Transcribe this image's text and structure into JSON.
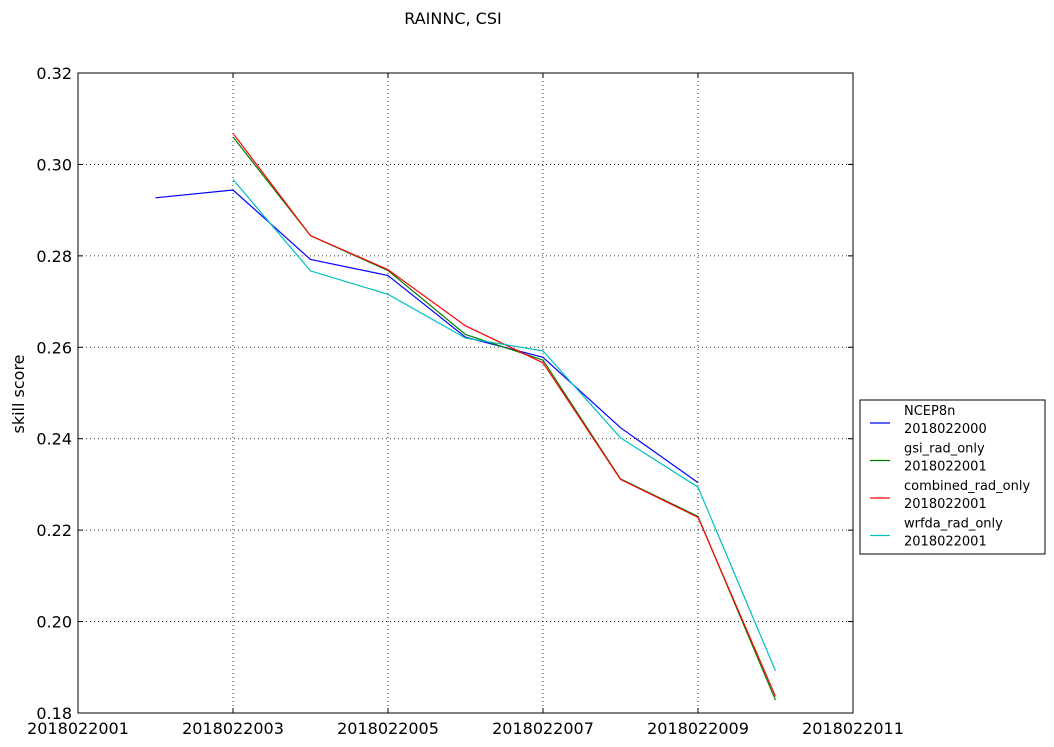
{
  "chart_data": {
    "type": "line",
    "title": "RAINNC, CSI",
    "ylabel": "skill score",
    "xlabel": "",
    "x_ticks": [
      "2018022001",
      "2018022003",
      "2018022005",
      "2018022007",
      "2018022009",
      "2018022011"
    ],
    "y_ticks": [
      "0.18",
      "0.20",
      "0.22",
      "0.24",
      "0.26",
      "0.28",
      "0.30",
      "0.32"
    ],
    "xlim": [
      "2018022001",
      "2018022011"
    ],
    "ylim": [
      0.18,
      0.32
    ],
    "grid": true,
    "legend_position": "outside-right",
    "series": [
      {
        "name": "NCEP8n",
        "name_line2": "2018022000",
        "color": "#0000ff",
        "x": [
          "2018022002",
          "2018022003",
          "2018022004",
          "2018022005",
          "2018022006",
          "2018022007",
          "2018022008",
          "2018022009"
        ],
        "y": [
          0.2927,
          0.2944,
          0.2792,
          0.2757,
          0.2622,
          0.2578,
          0.2424,
          0.2304
        ]
      },
      {
        "name": "gsi_rad_only",
        "name_line2": "2018022001",
        "color": "#008000",
        "x": [
          "2018022003",
          "2018022004",
          "2018022005",
          "2018022006",
          "2018022007",
          "2018022008",
          "2018022009",
          "2018022010"
        ],
        "y": [
          0.306,
          0.2844,
          0.2768,
          0.2628,
          0.2572,
          0.2312,
          0.223,
          0.1828
        ]
      },
      {
        "name": "combined_rad_only",
        "name_line2": "2018022001",
        "color": "#ff0000",
        "x": [
          "2018022003",
          "2018022004",
          "2018022005",
          "2018022006",
          "2018022007",
          "2018022008",
          "2018022009",
          "2018022010"
        ],
        "y": [
          0.3068,
          0.2844,
          0.277,
          0.2647,
          0.2566,
          0.2311,
          0.2228,
          0.1836
        ]
      },
      {
        "name": "wrfda_rad_only",
        "name_line2": "2018022001",
        "color": "#00bfbf",
        "x": [
          "2018022003",
          "2018022004",
          "2018022005",
          "2018022006",
          "2018022007",
          "2018022008",
          "2018022009",
          "2018022010"
        ],
        "y": [
          0.2967,
          0.2767,
          0.2716,
          0.262,
          0.2592,
          0.2402,
          0.2294,
          0.1892
        ]
      }
    ]
  }
}
